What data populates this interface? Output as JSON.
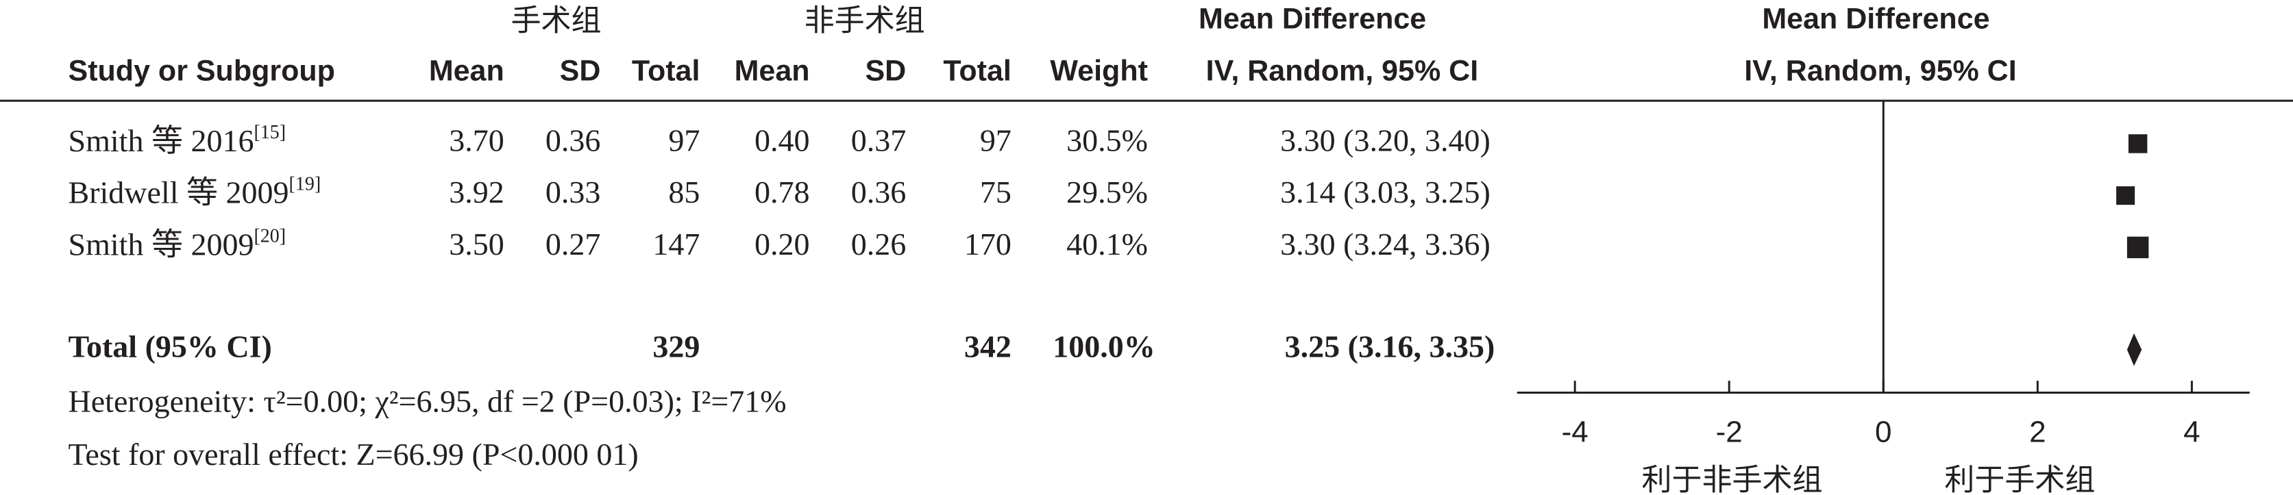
{
  "chart_data": {
    "type": "forest",
    "group_headers": {
      "experimental": "手术组",
      "control": "非手术组",
      "effect_table": "Mean Difference",
      "effect_plot": "Mean Difference"
    },
    "method_table": "IV, Random, 95% CI",
    "method_plot": "IV, Random, 95% CI",
    "columns": [
      "Study or Subgroup",
      "Mean",
      "SD",
      "Total",
      "Mean",
      "SD",
      "Total",
      "Weight"
    ],
    "studies": [
      {
        "name": "Smith 等 2016",
        "ref": "[15]",
        "cells": [
          "3.70",
          "0.36",
          97,
          "0.40",
          "0.37",
          97,
          "30.5%"
        ],
        "weight": 30.5,
        "md": 3.3,
        "ci": [
          3.2,
          3.4
        ],
        "ci_label": "3.30 (3.20, 3.40)"
      },
      {
        "name": "Bridwell 等 2009",
        "ref": "[19]",
        "cells": [
          "3.92",
          "0.33",
          85,
          "0.78",
          "0.36",
          75,
          "29.5%"
        ],
        "weight": 29.5,
        "md": 3.14,
        "ci": [
          3.03,
          3.25
        ],
        "ci_label": "3.14 (3.03, 3.25)"
      },
      {
        "name": "Smith 等 2009",
        "ref": "[20]",
        "cells": [
          "3.50",
          "0.27",
          147,
          "0.20",
          "0.26",
          170,
          "40.1%"
        ],
        "weight": 40.1,
        "md": 3.3,
        "ci": [
          3.24,
          3.36
        ],
        "ci_label": "3.30 (3.24, 3.36)"
      }
    ],
    "total": {
      "name": "Total (95% CI)",
      "n_experimental": 329,
      "n_control": 342,
      "weight_label": "100.0%",
      "md": 3.25,
      "ci": [
        3.16,
        3.35
      ],
      "ci_label": "3.25 (3.16, 3.35)"
    },
    "heterogeneity": "Heterogeneity: τ²=0.00; χ²=6.95, df =2 (P=0.03); I²=71%",
    "overall_effect": "Test for overall effect: Z=66.99 (P<0.000 01)",
    "xlim": [
      -4.75,
      4.75
    ],
    "xticks": [
      -4,
      -2,
      0,
      2,
      4
    ],
    "favours_left": "利于非手术组",
    "favours_right": "利于手术组",
    "marker_color": "#231f20"
  }
}
